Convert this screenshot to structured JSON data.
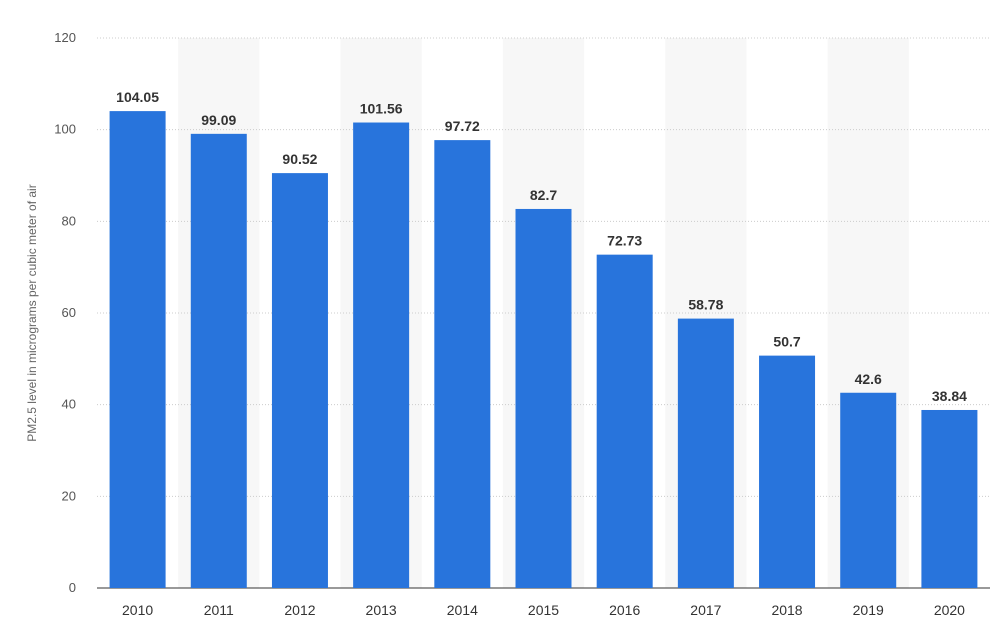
{
  "chart_data": {
    "type": "bar",
    "categories": [
      "2010",
      "2011",
      "2012",
      "2013",
      "2014",
      "2015",
      "2016",
      "2017",
      "2018",
      "2019",
      "2020"
    ],
    "values": [
      104.05,
      99.09,
      90.52,
      101.56,
      97.72,
      82.7,
      72.73,
      58.78,
      50.7,
      42.6,
      38.84
    ],
    "value_labels": [
      "104.05",
      "99.09",
      "90.52",
      "101.56",
      "97.72",
      "82.7",
      "72.73",
      "58.78",
      "50.7",
      "42.6",
      "38.84"
    ],
    "title": "",
    "xlabel": "",
    "ylabel": "PM2.5 level in micrograms per cubic meter of air",
    "ylim": [
      0,
      120
    ],
    "yticks": [
      "0",
      "20",
      "40",
      "60",
      "80",
      "100",
      "120"
    ],
    "grid": true,
    "bar_color": "#2874dc",
    "alt_band_color": "#f7f7f7",
    "grid_color": "#cccccc"
  }
}
